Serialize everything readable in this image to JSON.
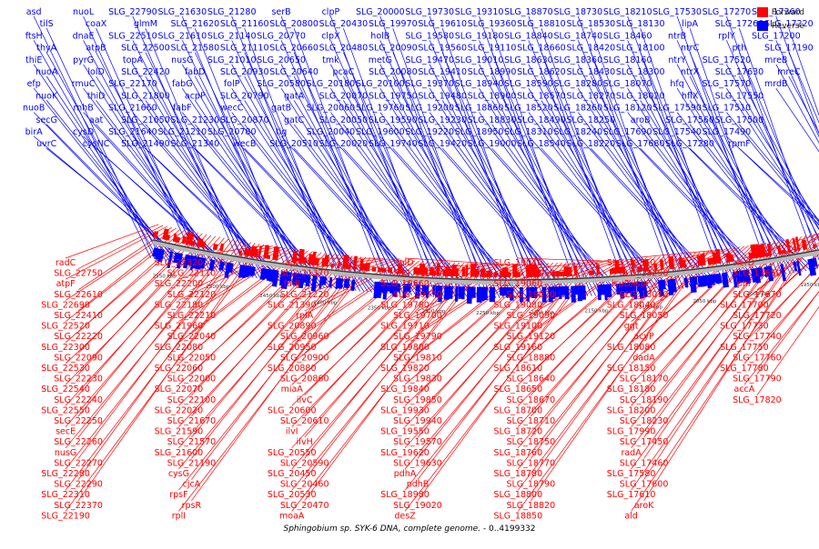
{
  "caption": {
    "organism": "Sphingobium sp. SYK-6 DNA, complete genome.",
    "range": " - 0..4199332"
  },
  "legend": [
    {
      "label": "Forward",
      "color": "#ff0000"
    },
    {
      "label": "Reverse",
      "color": "#0000ff"
    }
  ],
  "colors": {
    "forward": "#ff0000",
    "reverse": "#0000ff",
    "axis": "#555555"
  },
  "scale_labels": [
    "2550 kbp",
    "2500 kbp",
    "2450 kbp",
    "2400 kbp",
    "2350 kbp",
    "2300 kbp",
    "2250 kbp",
    "2200 kbp",
    "2150 kbp",
    "2100 kbp",
    "2050 kbp",
    "2000 kbp",
    "1950 kbp",
    "1900 kbp"
  ],
  "reverse_labels": [
    "asd",
    "tilS",
    "ftsH",
    "thyA",
    "thiE",
    "nuoA",
    "efp",
    "nuoK",
    "nuoB",
    "secG",
    "birA",
    "uvrC",
    "nuoL",
    "coaX",
    "dnaE",
    "atpB",
    "pyrG",
    "lolD",
    "rmuC",
    "thiD",
    "rnhB",
    "aat",
    "cysD",
    "cysNC",
    "SLG_22790",
    "glmM",
    "SLG_22510",
    "SLG_22500",
    "topA",
    "SLG_22420",
    "SLG_22170",
    "SLG_21800",
    "SLG_21660",
    "SLG_21650",
    "SLG_21640",
    "SLG_21490",
    "SLG_21630",
    "SLG_21620",
    "SLG_21610",
    "SLG_21580",
    "nusG",
    "fabD",
    "fabG",
    "acpP",
    "fabF",
    "SLG_21230",
    "SLG_21210",
    "SLG_21340",
    "SLG_21280",
    "SLG_21160",
    "SLG_21140",
    "SLG_21110",
    "SLG_21010",
    "SLG_20930",
    "folP",
    "SLG_20790",
    "wecC",
    "SLG_20870",
    "SLG_20780",
    "wecB",
    "serB",
    "SLG_20800",
    "SLG_20770",
    "SLG_20660",
    "SLG_20650",
    "SLG_20640",
    "SLG_20580",
    "gatA",
    "gatB",
    "gatC",
    "tig",
    "SLG_20510",
    "clpP",
    "SLG_20430",
    "clpX",
    "SLG_20480",
    "tmk",
    "pcaC",
    "SLG_20180",
    "SLG_20070",
    "SLG_20060",
    "SLG_20050",
    "SLG_20040",
    "SLG_20020",
    "SLG_20000",
    "SLG_19970",
    "holB",
    "SLG_20090",
    "metG",
    "SLG_20080",
    "SLG_20100",
    "SLG_19750",
    "SLG_19760",
    "SLG_19590",
    "SLG_19600",
    "SLG_19740",
    "SLG_19730",
    "SLG_19610",
    "SLG_19580",
    "SLG_19560",
    "SLG_19470",
    "SLG_19410",
    "SLG_19370",
    "SLG_19480",
    "SLG_19200",
    "SLG_19230",
    "SLG_19220",
    "SLG_19420",
    "SLG_19310",
    "SLG_19360",
    "SLG_19180",
    "SLG_19110",
    "SLG_19010",
    "SLG_18990",
    "SLG_18940",
    "SLG_18900",
    "SLG_18860",
    "SLG_18830",
    "SLG_18950",
    "SLG_19000",
    "SLG_18870",
    "SLG_18810",
    "SLG_18840",
    "SLG_18660",
    "SLG_18630",
    "SLG_18620",
    "SLG_18590",
    "SLG_18570",
    "SLG_18520",
    "SLG_18490",
    "SLG_18310",
    "SLG_18540",
    "SLG_18730",
    "SLG_18530",
    "SLG_18740",
    "SLG_18420",
    "SLG_18360",
    "SLG_18430",
    "SLG_18280",
    "SLG_18270",
    "SLG_18260",
    "SLG_18250",
    "SLG_18240",
    "SLG_18220",
    "SLG_18210",
    "SLG_18130",
    "SLG_18460",
    "SLG_18100",
    "SLG_18160",
    "SLG_18300",
    "SLG_18070",
    "SLG_18020",
    "SLG_18120",
    "aroB",
    "SLG_17690",
    "SLG_17680",
    "SLG_17530",
    "lipA",
    "ntrB",
    "ntrC",
    "ntrY",
    "ntrX",
    "hfq",
    "hflX",
    "SLG_17590",
    "SLG_17560",
    "SLG_17540",
    "SLG_17280",
    "SLG_17270",
    "SLG_17260",
    "rplY",
    "pth",
    "SLG_17520",
    "SLG_17630",
    "SLG_17570",
    "SLG_17550",
    "SLG_17510",
    "SLG_17500",
    "SLG_17490",
    "rpmF",
    "SLG_17360",
    "SLG_17220",
    "SLG_17200",
    "SLG_17190",
    "mreB",
    "mreC",
    "mrdB"
  ],
  "forward_labels": [
    "radC",
    "SLG_22750",
    "atpF",
    "SLG_22610",
    "SLG_22690",
    "SLG_22410",
    "SLG_22520",
    "SLG_22220",
    "SLG_22300",
    "SLG_22090",
    "SLG_22530",
    "SLG_22230",
    "SLG_22540",
    "SLG_22240",
    "SLG_22550",
    "SLG_22250",
    "secE",
    "SLG_22260",
    "nusG",
    "SLG_22270",
    "SLG_22280",
    "SLG_22290",
    "SLG_22310",
    "SLG_22370",
    "SLG_22190",
    "SLG_22320",
    "SLG_22110",
    "SLG_22200",
    "SLG_22120",
    "SLG_22180",
    "SLG_22210",
    "SLG_21960",
    "SLG_22040",
    "SLG_22080",
    "SLG_22050",
    "SLG_22060",
    "SLG_22000",
    "SLG_22070",
    "SLG_22100",
    "SLG_22020",
    "SLG_21670",
    "SLG_21590",
    "SLG_21570",
    "SLG_21600",
    "SLG_21190",
    "cysG",
    "cjcA",
    "rpsF",
    "rpsR",
    "rplI",
    "apt",
    "SLG_21370",
    "fadJ",
    "SLG_21220",
    "SLG_21390",
    "rplA",
    "SLG_20890",
    "SLG_20960",
    "SLG_20950",
    "SLG_20900",
    "SLG_20880",
    "SLG_20860",
    "miaA",
    "ilvC",
    "SLG_20600",
    "SLG_20610",
    "ilvI",
    "ilvH",
    "SLG_20550",
    "SLG_20590",
    "SLG_20450",
    "SLG_20460",
    "SLG_20530",
    "SLG_20470",
    "moaA",
    "folD",
    "SLG_19960",
    "SLG_19660",
    "SLG_19770",
    "SLG_19780",
    "SLG_19700",
    "SLG_19710",
    "SLG_19790",
    "SLG_19800",
    "SLG_19810",
    "SLG_19820",
    "SLG_19830",
    "SLG_19840",
    "SLG_19850",
    "SLG_19930",
    "SLG_19940",
    "SLG_19550",
    "SLG_19570",
    "SLG_19620",
    "SLG_19630",
    "pdhA",
    "pdhB",
    "SLG_18980",
    "SLG_19020",
    "desZ",
    "SLG_19040",
    "SLG_19050",
    "SLG_19060",
    "SLG_19070",
    "SLG_19080",
    "SLG_19090",
    "SLG_19100",
    "SLG_19120",
    "SLG_19160",
    "SLG_18880",
    "SLG_18610",
    "SLG_18640",
    "SLG_18650",
    "SLG_18670",
    "SLG_18700",
    "SLG_18710",
    "SLG_18720",
    "SLG_18750",
    "SLG_18760",
    "SLG_18770",
    "SLG_18780",
    "SLG_18790",
    "SLG_18800",
    "SLG_18820",
    "SLG_18850",
    "SLG_18350",
    "SLG_18290",
    "ispD/ispF",
    "SLG_18010",
    "SLG_18040",
    "SLG_18050",
    "ggt",
    "acyP",
    "SLG_18080",
    "dadA",
    "SLG_18150",
    "SLG_18170",
    "SLG_18180",
    "SLG_18190",
    "SLG_18200",
    "SLG_18230",
    "SLG_17990",
    "SLG_17450",
    "radA",
    "SLG_17460",
    "SLG_17580",
    "SLG_17600",
    "SLG_17610",
    "aroK",
    "ald",
    "xerD",
    "SLG_17650",
    "phr",
    "SLG_17670",
    "SLG_17700",
    "SLG_17720",
    "SLG_17730",
    "SLG_17740",
    "SLG_17750",
    "SLG_17760",
    "SLG_17780",
    "SLG_17790",
    "accA",
    "SLG_17820"
  ]
}
